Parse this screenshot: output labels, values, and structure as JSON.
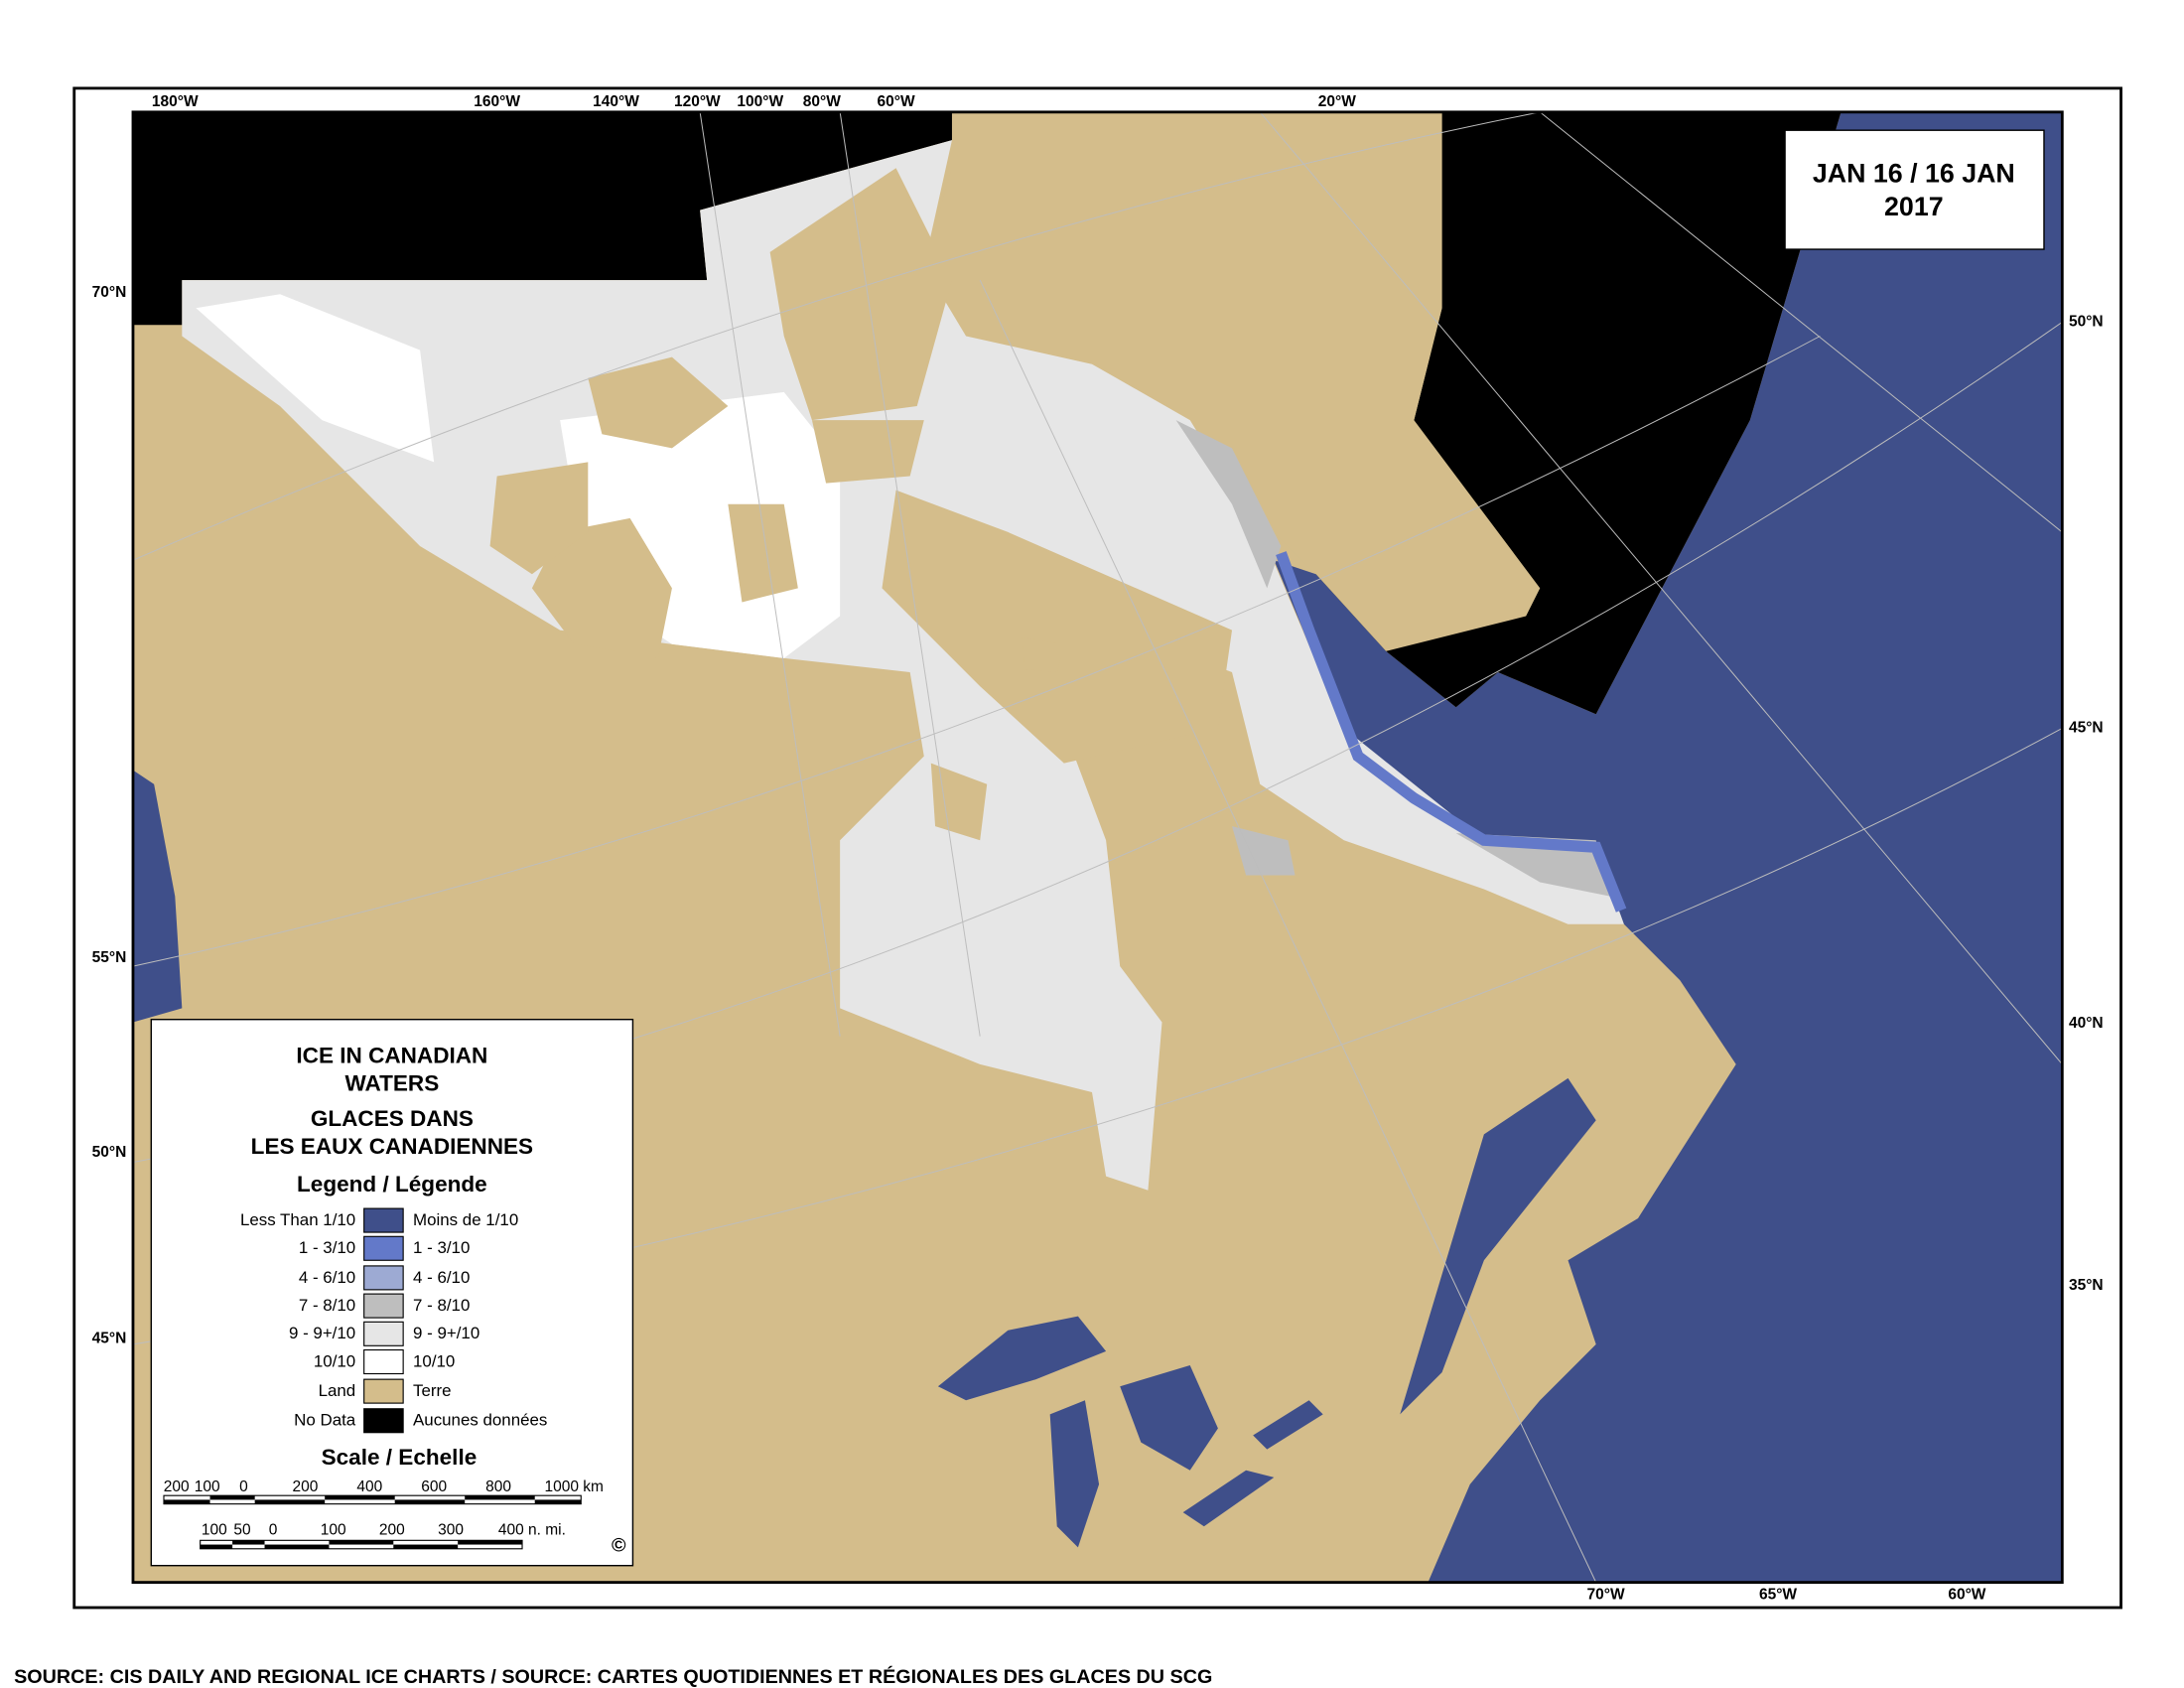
{
  "map": {
    "date_line1": "JAN 16 / 16 JAN",
    "date_line2": "2017",
    "source": "SOURCE: CIS DAILY AND REGIONAL ICE CHARTS / SOURCE: CARTES QUOTIDIENNES ET RÉGIONALES DES GLACES DU SCG",
    "top_ticks": [
      "180°W",
      "160°W",
      "140°W",
      "120°W",
      "100°W",
      "80°W",
      "60°W",
      "20°W"
    ],
    "left_ticks": [
      "70°N",
      "55°N",
      "50°N",
      "45°N"
    ],
    "right_ticks": [
      "50°N",
      "45°N",
      "40°N",
      "35°N"
    ],
    "bottom_ticks": [
      "70°W",
      "65°W",
      "60°W"
    ]
  },
  "legend": {
    "title_en_1": "ICE IN CANADIAN",
    "title_en_2": "WATERS",
    "title_fr_1": "GLACES DANS",
    "title_fr_2": "LES EAUX CANADIENNES",
    "heading": "Legend / Légende",
    "items": [
      {
        "en": "Less Than 1/10",
        "fr": "Moins de 1/10",
        "color": "#3f4f8a"
      },
      {
        "en": "1 - 3/10",
        "fr": "1 - 3/10",
        "color": "#6379c9"
      },
      {
        "en": "4 - 6/10",
        "fr": "4 - 6/10",
        "color": "#9daad3"
      },
      {
        "en": "7 - 8/10",
        "fr": "7 - 8/10",
        "color": "#bebebe"
      },
      {
        "en": "9 - 9+/10",
        "fr": "9 - 9+/10",
        "color": "#e6e6e6"
      },
      {
        "en": "10/10",
        "fr": "10/10",
        "color": "#ffffff"
      },
      {
        "en": "Land",
        "fr": "Terre",
        "color": "#d4bd8b"
      },
      {
        "en": "No Data",
        "fr": "Aucunes données",
        "color": "#000000"
      }
    ],
    "scale_heading": "Scale / Echelle",
    "km_labels": [
      "200",
      "100",
      "0",
      "200",
      "400",
      "600",
      "800",
      "1000 km"
    ],
    "nmi_labels": [
      "100",
      "50",
      "0",
      "100",
      "200",
      "300",
      "400 n. mi."
    ],
    "copyright": "©"
  }
}
